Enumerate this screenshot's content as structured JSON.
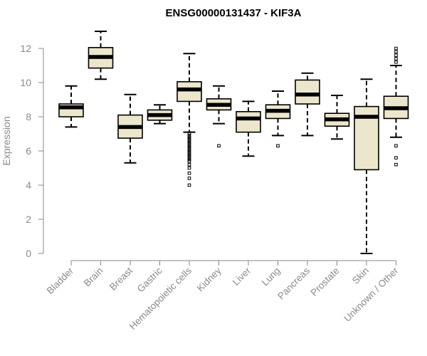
{
  "chart_data": {
    "type": "boxplot",
    "title": "ENSG00000131437 - KIF3A",
    "xlabel": "",
    "ylabel": "Expression",
    "ylim": [
      0,
      12
    ],
    "yticks": [
      0,
      2,
      4,
      6,
      8,
      10,
      12
    ],
    "grid": false,
    "legend": "none",
    "colors": {
      "box_fill": "#ece6cc",
      "box_stroke": "#000000",
      "axis": "#8a8a8a"
    },
    "categories": [
      "Bladder",
      "Brain",
      "Breast",
      "Gastric",
      "Hematopoietic cells",
      "Kidney",
      "Liver",
      "Lung",
      "Pancreas",
      "Prostate",
      "Skin",
      "Unknown / Other"
    ],
    "boxes": [
      {
        "category": "Bladder",
        "whisker_low": 7.4,
        "q1": 8.0,
        "median": 8.55,
        "q3": 8.75,
        "whisker_high": 9.8,
        "outliers": []
      },
      {
        "category": "Brain",
        "whisker_low": 10.2,
        "q1": 10.85,
        "median": 11.5,
        "q3": 12.05,
        "whisker_high": 13.0,
        "outliers": []
      },
      {
        "category": "Breast",
        "whisker_low": 5.3,
        "q1": 6.75,
        "median": 7.4,
        "q3": 8.1,
        "whisker_high": 9.3,
        "outliers": []
      },
      {
        "category": "Gastric",
        "whisker_low": 7.6,
        "q1": 7.8,
        "median": 8.1,
        "q3": 8.4,
        "whisker_high": 8.7,
        "outliers": []
      },
      {
        "category": "Hematopoietic cells",
        "whisker_low": 7.1,
        "q1": 8.9,
        "median": 9.6,
        "q3": 10.05,
        "whisker_high": 11.7,
        "outliers": [
          7.0,
          6.9,
          6.8,
          6.7,
          6.6,
          6.5,
          6.4,
          6.3,
          6.2,
          6.1,
          6.0,
          5.9,
          5.8,
          5.7,
          5.6,
          5.5,
          5.4,
          5.2,
          5.0,
          4.7,
          4.4,
          4.0
        ]
      },
      {
        "category": "Kidney",
        "whisker_low": 7.6,
        "q1": 8.4,
        "median": 8.7,
        "q3": 9.05,
        "whisker_high": 9.8,
        "outliers": [
          6.3
        ]
      },
      {
        "category": "Liver",
        "whisker_low": 5.7,
        "q1": 7.1,
        "median": 7.9,
        "q3": 8.3,
        "whisker_high": 8.9,
        "outliers": []
      },
      {
        "category": "Lung",
        "whisker_low": 6.9,
        "q1": 7.9,
        "median": 8.35,
        "q3": 8.7,
        "whisker_high": 9.5,
        "outliers": [
          6.3
        ]
      },
      {
        "category": "Pancreas",
        "whisker_low": 6.9,
        "q1": 8.75,
        "median": 9.3,
        "q3": 10.15,
        "whisker_high": 10.55,
        "outliers": []
      },
      {
        "category": "Prostate",
        "whisker_low": 6.7,
        "q1": 7.45,
        "median": 7.85,
        "q3": 8.2,
        "whisker_high": 9.25,
        "outliers": []
      },
      {
        "category": "Skin",
        "whisker_low": 0.0,
        "q1": 4.9,
        "median": 8.0,
        "q3": 8.6,
        "whisker_high": 10.2,
        "outliers": []
      },
      {
        "category": "Unknown / Other",
        "whisker_low": 6.8,
        "q1": 7.9,
        "median": 8.5,
        "q3": 9.2,
        "whisker_high": 11.0,
        "outliers": [
          12.0,
          11.8,
          11.6,
          11.4,
          11.2,
          6.3,
          5.6,
          5.2
        ]
      }
    ]
  }
}
